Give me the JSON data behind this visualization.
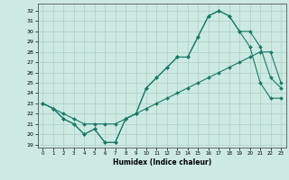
{
  "xlabel": "Humidex (Indice chaleur)",
  "xlim": [
    -0.5,
    23.5
  ],
  "ylim": [
    18.7,
    32.7
  ],
  "yticks": [
    19,
    20,
    21,
    22,
    23,
    24,
    25,
    26,
    27,
    28,
    29,
    30,
    31,
    32
  ],
  "xticks": [
    0,
    1,
    2,
    3,
    4,
    5,
    6,
    7,
    8,
    9,
    10,
    11,
    12,
    13,
    14,
    15,
    16,
    17,
    18,
    19,
    20,
    21,
    22,
    23
  ],
  "bg_color": "#cce9e2",
  "line_color": "#1a7a68",
  "grid_color": "#aecfc8",
  "line1_y": [
    23.0,
    22.5,
    21.5,
    21.0,
    20.0,
    20.5,
    19.2,
    19.2,
    21.5,
    22.0,
    24.5,
    25.5,
    26.5,
    27.5,
    27.5,
    29.5,
    31.5,
    32.0,
    31.5,
    30.0,
    28.5,
    25.0,
    23.5,
    23.5
  ],
  "line2_y": [
    23.0,
    22.5,
    21.5,
    21.0,
    20.0,
    20.5,
    19.2,
    19.2,
    21.5,
    22.0,
    24.5,
    25.5,
    26.5,
    27.5,
    27.5,
    29.5,
    31.5,
    32.0,
    31.5,
    30.0,
    30.0,
    28.5,
    25.5,
    24.5
  ],
  "line3_y": [
    23.0,
    22.5,
    22.0,
    21.5,
    21.0,
    21.0,
    21.0,
    21.0,
    21.5,
    22.0,
    22.5,
    23.0,
    23.5,
    24.0,
    24.5,
    25.0,
    25.5,
    26.0,
    26.5,
    27.0,
    27.5,
    28.0,
    28.0,
    25.0
  ]
}
